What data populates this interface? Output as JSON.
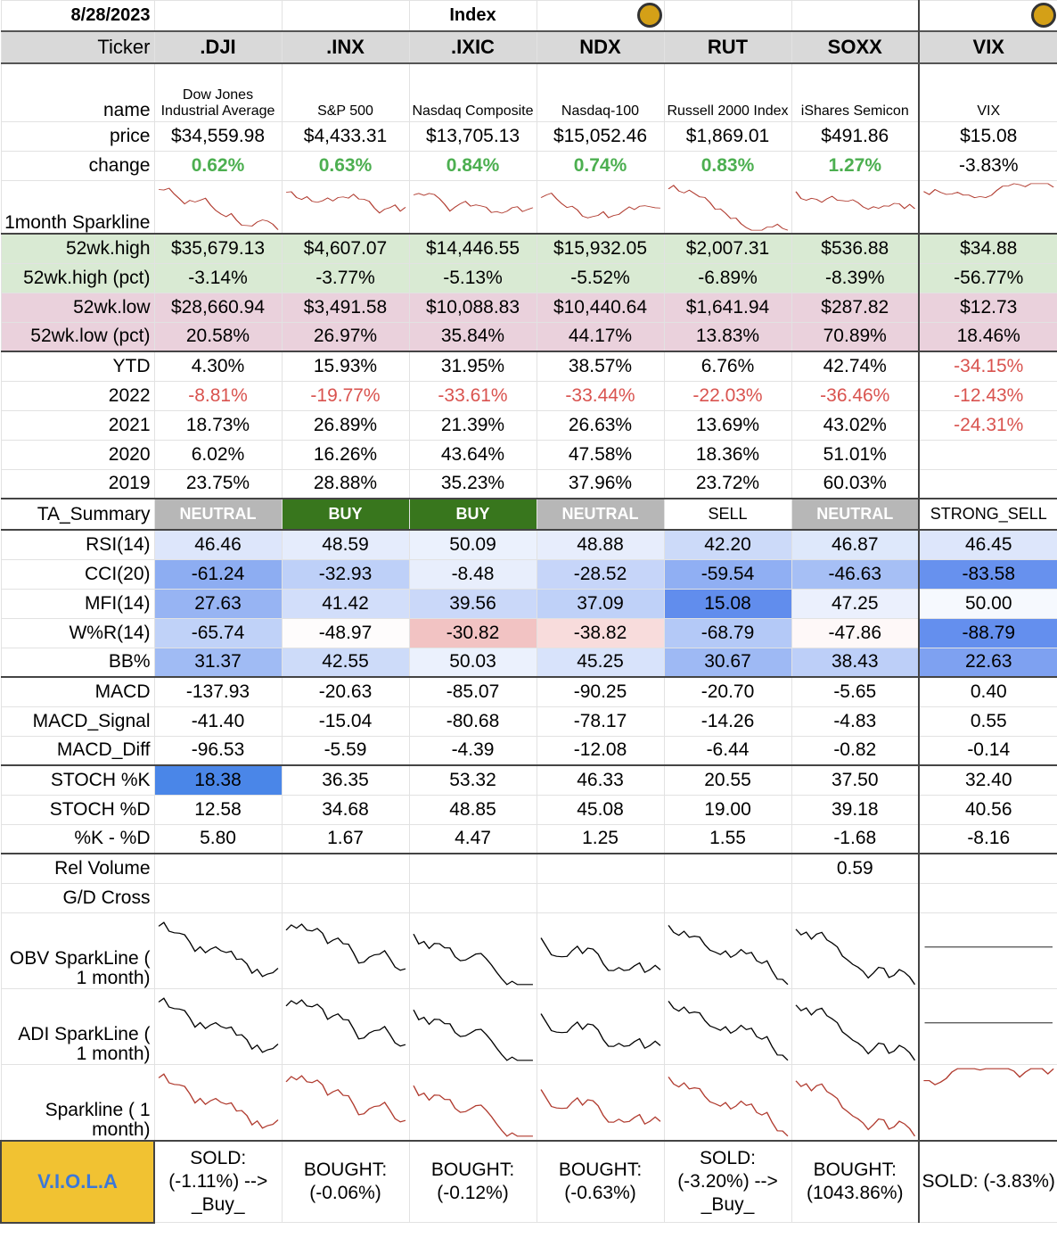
{
  "date": "8/28/2023",
  "section_title": "Index",
  "header_label": "Ticker",
  "tickers": [
    ".DJI",
    ".INX",
    ".IXIC",
    "NDX",
    "RUT",
    "SOXX",
    "VIX"
  ],
  "names": [
    "Dow Jones Industrial Average",
    "S&P 500",
    "Nasdaq Composite",
    "Nasdaq-100",
    "Russell 2000 Index",
    "iShares Semicon",
    "VIX"
  ],
  "labels": {
    "name": "name",
    "price": "price",
    "change": "change",
    "sparkline_1m": "1month Sparkline",
    "high52": "52wk.high",
    "high52_pct": "52wk.high (pct)",
    "low52": "52wk.low",
    "low52_pct": "52wk.low (pct)",
    "ytd": "YTD",
    "y2022": "2022",
    "y2021": "2021",
    "y2020": "2020",
    "y2019": "2019",
    "ta_summary": "TA_Summary",
    "rsi": "RSI(14)",
    "cci": "CCI(20)",
    "mfi": "MFI(14)",
    "wr": "W%R(14)",
    "bb": "BB%",
    "macd": "MACD",
    "macd_signal": "MACD_Signal",
    "macd_diff": "MACD_Diff",
    "stoch_k": "STOCH %K",
    "stoch_d": "STOCH %D",
    "k_minus_d": "%K - %D",
    "rel_volume": "Rel Volume",
    "gd_cross": "G/D Cross",
    "obv": "OBV SparkLine ( 1 month)",
    "adi": "ADI SparkLine ( 1 month)",
    "spark": "Sparkline ( 1 month)",
    "viola": "V.I.O.L.A"
  },
  "price": [
    "$34,559.98",
    "$4,433.31",
    "$13,705.13",
    "$15,052.46",
    "$1,869.01",
    "$491.86",
    "$15.08"
  ],
  "change": [
    "0.62%",
    "0.63%",
    "0.84%",
    "0.74%",
    "0.83%",
    "1.27%",
    "-3.83%"
  ],
  "high52": [
    "$35,679.13",
    "$4,607.07",
    "$14,446.55",
    "$15,932.05",
    "$2,007.31",
    "$536.88",
    "$34.88"
  ],
  "high52_pct": [
    "-3.14%",
    "-3.77%",
    "-5.13%",
    "-5.52%",
    "-6.89%",
    "-8.39%",
    "-56.77%"
  ],
  "low52": [
    "$28,660.94",
    "$3,491.58",
    "$10,088.83",
    "$10,440.64",
    "$1,641.94",
    "$287.82",
    "$12.73"
  ],
  "low52_pct": [
    "20.58%",
    "26.97%",
    "35.84%",
    "44.17%",
    "13.83%",
    "70.89%",
    "18.46%"
  ],
  "ytd": [
    "4.30%",
    "15.93%",
    "31.95%",
    "38.57%",
    "6.76%",
    "42.74%",
    "-34.15%"
  ],
  "y2022": [
    "-8.81%",
    "-19.77%",
    "-33.61%",
    "-33.44%",
    "-22.03%",
    "-36.46%",
    "-12.43%"
  ],
  "y2021": [
    "18.73%",
    "26.89%",
    "21.39%",
    "26.63%",
    "13.69%",
    "43.02%",
    "-24.31%"
  ],
  "y2020": [
    "6.02%",
    "16.26%",
    "43.64%",
    "47.58%",
    "18.36%",
    "51.01%",
    ""
  ],
  "y2019": [
    "23.75%",
    "28.88%",
    "35.23%",
    "37.96%",
    "23.72%",
    "60.03%",
    ""
  ],
  "ta_summary": [
    "NEUTRAL",
    "BUY",
    "BUY",
    "NEUTRAL",
    "SELL",
    "NEUTRAL",
    "STRONG_SELL"
  ],
  "rsi": [
    "46.46",
    "48.59",
    "50.09",
    "48.88",
    "42.20",
    "46.87",
    "46.45"
  ],
  "cci": [
    "-61.24",
    "-32.93",
    "-8.48",
    "-28.52",
    "-59.54",
    "-46.63",
    "-83.58"
  ],
  "mfi": [
    "27.63",
    "41.42",
    "39.56",
    "37.09",
    "15.08",
    "47.25",
    "50.00"
  ],
  "wr": [
    "-65.74",
    "-48.97",
    "-30.82",
    "-38.82",
    "-68.79",
    "-47.86",
    "-88.79"
  ],
  "bb": [
    "31.37",
    "42.55",
    "50.03",
    "45.25",
    "30.67",
    "38.43",
    "22.63"
  ],
  "macd": [
    "-137.93",
    "-20.63",
    "-85.07",
    "-90.25",
    "-20.70",
    "-5.65",
    "0.40"
  ],
  "macd_signal": [
    "-41.40",
    "-15.04",
    "-80.68",
    "-78.17",
    "-14.26",
    "-4.83",
    "0.55"
  ],
  "macd_diff": [
    "-96.53",
    "-5.59",
    "-4.39",
    "-12.08",
    "-6.44",
    "-0.82",
    "-0.14"
  ],
  "stoch_k": [
    "18.38",
    "36.35",
    "53.32",
    "46.33",
    "20.55",
    "37.50",
    "32.40"
  ],
  "stoch_d": [
    "12.58",
    "34.68",
    "48.85",
    "45.08",
    "19.00",
    "39.18",
    "40.56"
  ],
  "k_minus_d": [
    "5.80",
    "1.67",
    "4.47",
    "1.25",
    "1.55",
    "-1.68",
    "-8.16"
  ],
  "rel_volume": [
    "",
    "",
    "",
    "",
    "",
    "0.59",
    ""
  ],
  "viola": [
    "SOLD: (-1.11%) --> _Buy_",
    "BOUGHT: (-0.06%)",
    "BOUGHT: (-0.12%)",
    "BOUGHT: (-0.63%)",
    "SOLD: (-3.20%) --> _Buy_",
    "BOUGHT: (1043.86%)",
    "SOLD: (-3.83%)"
  ],
  "colors": {
    "up_green": "#4caf50",
    "down_red": "#d9534f",
    "buy_bg": "#38761d",
    "neutral_bg": "#b7b7b7",
    "high_bg": "#d9ead3",
    "low_bg": "#ead1dc",
    "viola_bg": "#f1c232",
    "viola_text": "#3c78d8",
    "spark_red": "#b03a2e"
  },
  "icons": [
    "pumpkin-icon",
    "pumpkin-icon"
  ]
}
